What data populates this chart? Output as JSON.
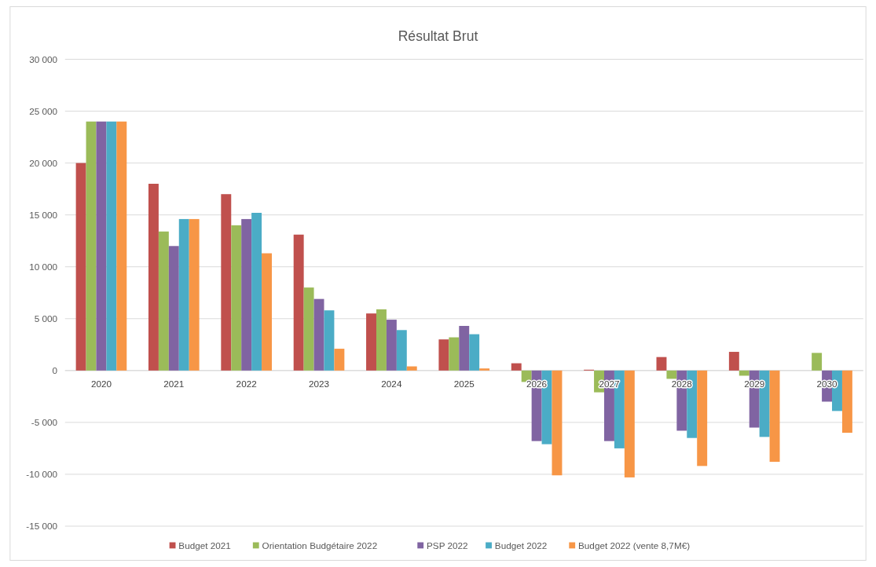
{
  "chart_data": {
    "type": "bar",
    "title": "Résultat Brut",
    "categories": [
      "2020",
      "2021",
      "2022",
      "2023",
      "2024",
      "2025",
      "2026",
      "2027",
      "2028",
      "2029",
      "2030"
    ],
    "series": [
      {
        "name": "Budget 2021",
        "color": "#c0504d",
        "values": [
          20000,
          18000,
          17000,
          13100,
          5500,
          3000,
          700,
          80,
          1300,
          1800,
          null
        ]
      },
      {
        "name": "Orientation Budgétaire 2022",
        "color": "#9bbb59",
        "values": [
          24000,
          13400,
          14000,
          8000,
          5900,
          3200,
          -1100,
          -2100,
          -800,
          -500,
          1700
        ]
      },
      {
        "name": "PSP 2022",
        "color": "#8064a2",
        "values": [
          24000,
          12000,
          14600,
          6900,
          4900,
          4300,
          -6800,
          -6800,
          -5800,
          -5500,
          -3000
        ]
      },
      {
        "name": "Budget 2022",
        "color": "#4bacc6",
        "values": [
          24000,
          14600,
          15200,
          5800,
          3900,
          3500,
          -7100,
          -7500,
          -6500,
          -6400,
          -3900
        ]
      },
      {
        "name": "Budget 2022 (vente 8,7M€)",
        "color": "#f79646",
        "values": [
          24000,
          14600,
          11300,
          2100,
          400,
          200,
          -10100,
          -10300,
          -9200,
          -8800,
          -6000
        ]
      }
    ],
    "ylim": [
      -15000,
      30000
    ],
    "yticks": [
      {
        "value": -15000,
        "label": "-15 000"
      },
      {
        "value": -10000,
        "label": "-10 000"
      },
      {
        "value": -5000,
        "label": "-5 000"
      },
      0,
      {
        "value": 5000,
        "label": "5 000"
      },
      {
        "value": 10000,
        "label": "10 000"
      },
      {
        "value": 15000,
        "label": "15 000"
      },
      {
        "value": 20000,
        "label": "20 000"
      },
      {
        "value": 25000,
        "label": "25 000"
      },
      {
        "value": 30000,
        "label": "30 000"
      }
    ],
    "grid": "y",
    "legend": "bottom"
  }
}
